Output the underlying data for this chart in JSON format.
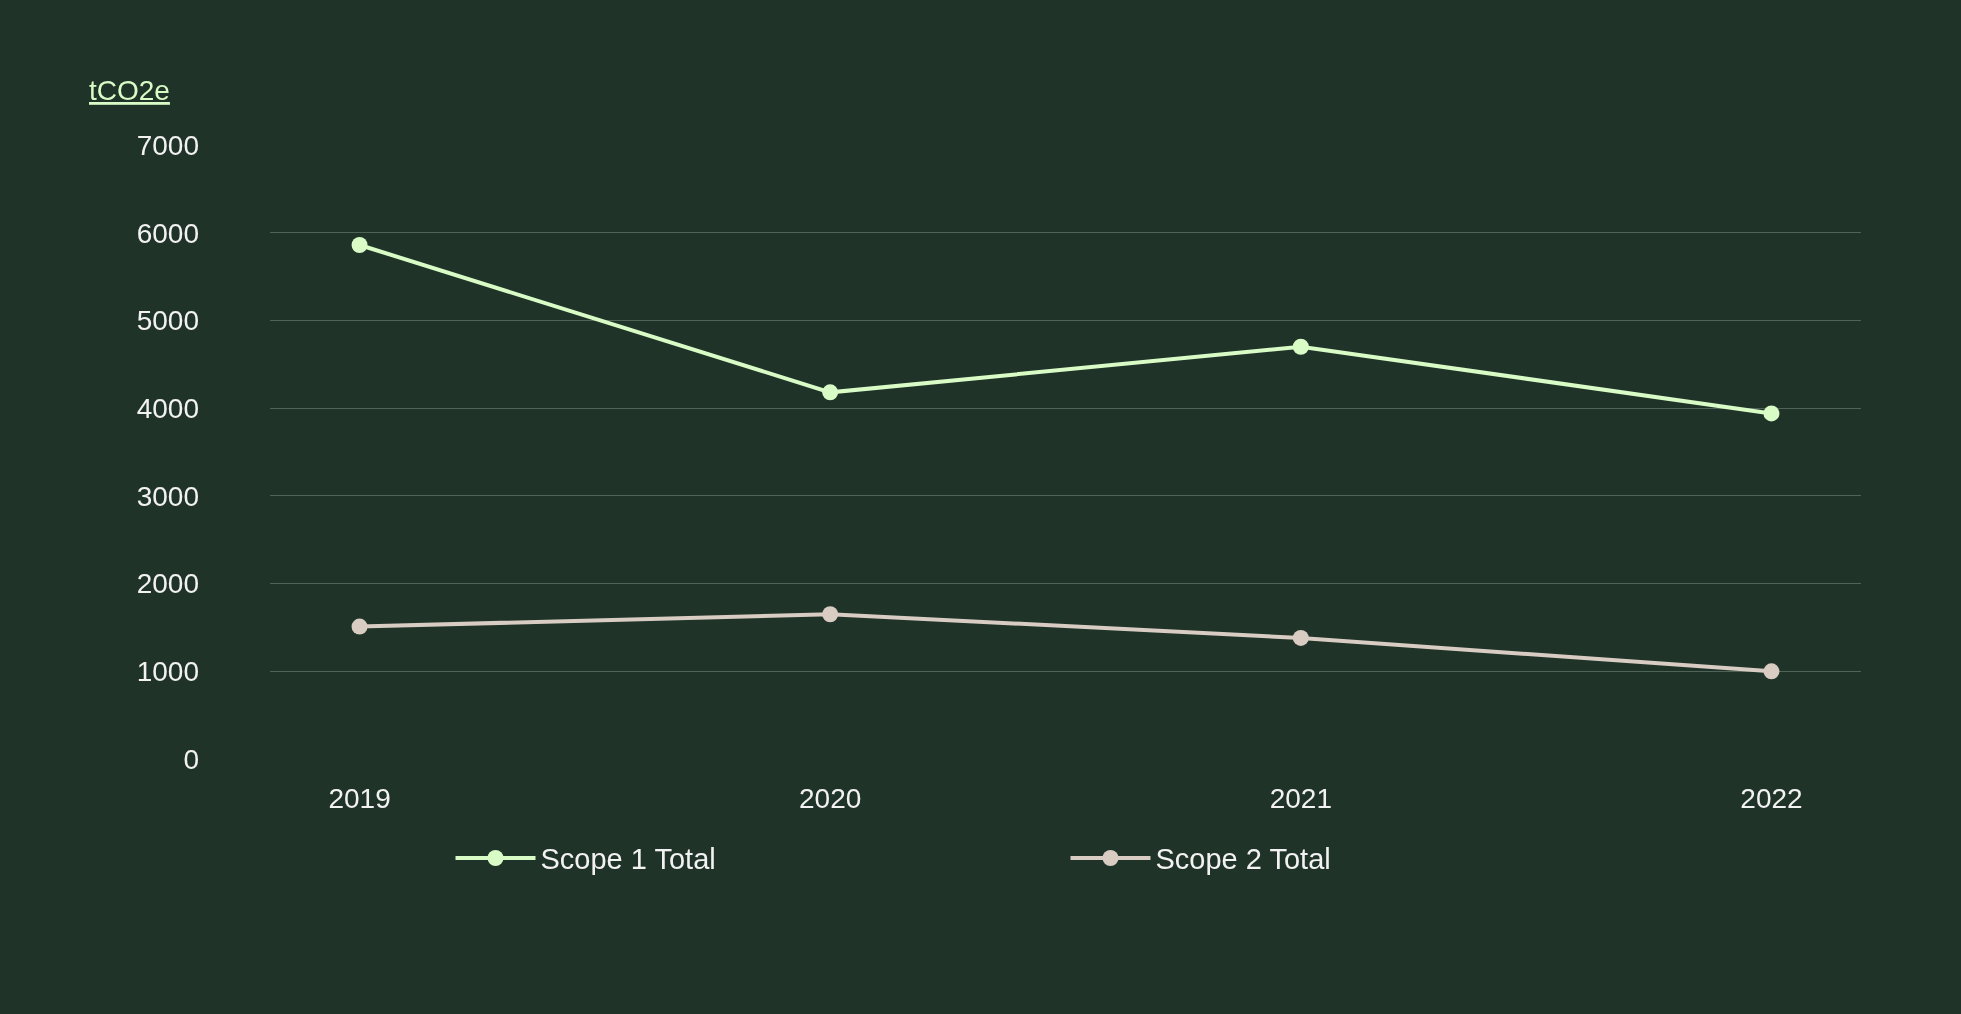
{
  "chart_data": {
    "type": "line",
    "ylabel": "tCO2e",
    "categories": [
      "2019",
      "2020",
      "2021",
      "2022"
    ],
    "series": [
      {
        "name": "Scope 1 Total",
        "color": "#d9fbc6",
        "values": [
          5860,
          4180,
          4700,
          3940
        ]
      },
      {
        "name": "Scope 2 Total",
        "color": "#d9ccc2",
        "values": [
          1510,
          1650,
          1380,
          1000
        ]
      }
    ],
    "ylim": [
      0,
      7000
    ],
    "yticks": [
      0,
      1000,
      2000,
      3000,
      4000,
      5000,
      6000,
      7000
    ],
    "grid": "y",
    "legend": "bottom",
    "marker": "circle",
    "line_style": "solid"
  }
}
